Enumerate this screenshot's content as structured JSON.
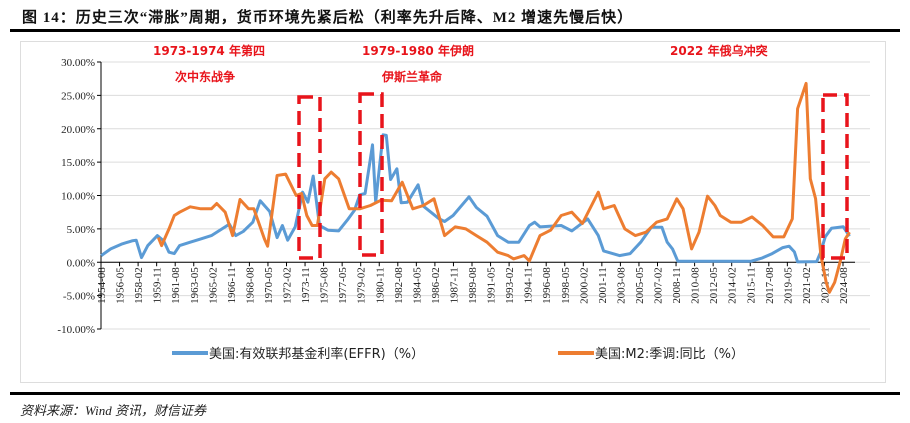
{
  "title": "图 14：历史三次“滞胀”周期，货币环境先紧后松（利率先升后降、M2 增速先慢后快）",
  "source": "资料来源：Wind 资讯，财信证券",
  "annotations": [
    {
      "line1": "1973-1974 年第四",
      "line2": "次中东战争"
    },
    {
      "line1": "1979-1980 年伊朗",
      "line2": "伊斯兰革命"
    },
    {
      "line1": "2022 年俄乌冲突",
      "line2": ""
    }
  ],
  "colors": {
    "effr": "#5b9bd5",
    "m2": "#ed7d31",
    "highlight": "#e8141b"
  },
  "chart_data": {
    "type": "line",
    "ylim": [
      -10,
      30
    ],
    "yticks": [
      "-10.00%",
      "-5.00%",
      "0.00%",
      "5.00%",
      "10.00%",
      "15.00%",
      "20.00%",
      "25.00%",
      "30.00%"
    ],
    "ytick_values": [
      -10,
      -5,
      0,
      5,
      10,
      15,
      20,
      25,
      30
    ],
    "grid": true,
    "legend_position": "bottom",
    "xticks": [
      "1954-08",
      "1956-05",
      "1958-02",
      "1959-11",
      "1961-08",
      "1963-05",
      "1965-02",
      "1966-11",
      "1968-08",
      "1970-05",
      "1972-02",
      "1973-11",
      "1975-08",
      "1977-05",
      "1979-02",
      "1980-11",
      "1982-08",
      "1984-05",
      "1986-02",
      "1987-11",
      "1989-08",
      "1991-05",
      "1993-02",
      "1994-11",
      "1996-08",
      "1998-05",
      "2000-02",
      "2001-11",
      "2003-08",
      "2005-05",
      "2007-02",
      "2008-11",
      "2010-08",
      "2012-05",
      "2014-02",
      "2015-11",
      "2017-08",
      "2019-05",
      "2021-02",
      "2022-11",
      "2024-08"
    ],
    "highlight_periods": [
      "1973-1974",
      "1979-1980",
      "2022-2024"
    ],
    "series": [
      {
        "name": "美国:有效联邦基金利率(EFFR)（%）",
        "key": "effr",
        "x": [
          1954.6,
          1955.5,
          1956.5,
          1957.5,
          1957.9,
          1958.4,
          1959.0,
          1959.9,
          1960.5,
          1961.0,
          1961.5,
          1962.0,
          1963.0,
          1964.0,
          1965.0,
          1966.0,
          1966.7,
          1967.3,
          1968.0,
          1968.9,
          1969.6,
          1970.5,
          1971.2,
          1971.7,
          1972.2,
          1972.9,
          1973.6,
          1974.1,
          1974.6,
          1975.2,
          1976.0,
          1977.0,
          1977.9,
          1978.5,
          1979.0,
          1979.5,
          1980.2,
          1980.5,
          1980.9,
          1981.2,
          1981.5,
          1981.9,
          1982.5,
          1982.9,
          1983.5,
          1984.5,
          1985.0,
          1986.5,
          1987.0,
          1987.8,
          1989.3,
          1990.0,
          1991.0,
          1992.0,
          1993.0,
          1994.0,
          1995.0,
          1995.5,
          1996.0,
          1998.0,
          1999.0,
          2000.5,
          2001.5,
          2002.0,
          2003.5,
          2004.5,
          2005.5,
          2006.5,
          2007.5,
          2008.0,
          2008.5,
          2009.0,
          2015.9,
          2016.9,
          2017.9,
          2018.9,
          2019.5,
          2020.0,
          2020.3,
          2022.1,
          2022.5,
          2022.9,
          2023.5,
          2024.6,
          2024.9,
          2025.2
        ],
        "values": [
          1.0,
          2.0,
          2.7,
          3.2,
          3.3,
          0.7,
          2.5,
          4.0,
          3.2,
          1.5,
          1.3,
          2.5,
          3.0,
          3.5,
          4.0,
          5.0,
          5.7,
          4.0,
          4.6,
          6.0,
          9.2,
          7.6,
          3.7,
          5.5,
          3.3,
          5.3,
          10.5,
          9.0,
          12.9,
          5.5,
          4.8,
          4.7,
          6.5,
          7.8,
          10.1,
          10.3,
          17.6,
          9.0,
          15.0,
          19.1,
          19.0,
          12.4,
          14.0,
          8.9,
          9.0,
          11.6,
          8.4,
          6.5,
          6.1,
          7.0,
          9.8,
          8.2,
          6.9,
          4.0,
          3.0,
          3.0,
          5.5,
          6.0,
          5.3,
          5.5,
          4.7,
          6.5,
          4.0,
          1.7,
          1.0,
          1.3,
          3.0,
          5.25,
          5.25,
          3.0,
          2.0,
          0.15,
          0.15,
          0.6,
          1.3,
          2.2,
          2.4,
          1.55,
          0.05,
          0.1,
          1.6,
          3.8,
          5.1,
          5.33,
          4.6,
          3.9
        ]
      },
      {
        "name": "美国:M2:季调:同比（%）",
        "key": "m2",
        "x": [
          1960.0,
          1960.3,
          1961.0,
          1961.5,
          1962.0,
          1963.0,
          1964.0,
          1965.0,
          1965.5,
          1966.3,
          1967.0,
          1967.7,
          1968.5,
          1969.0,
          1970.0,
          1970.3,
          1971.2,
          1972.0,
          1973.0,
          1973.5,
          1974.0,
          1974.5,
          1975.0,
          1975.7,
          1976.3,
          1977.0,
          1978.0,
          1979.0,
          1980.0,
          1981.0,
          1982.0,
          1983.0,
          1984.0,
          1985.0,
          1986.0,
          1987.0,
          1988.0,
          1989.0,
          1990.0,
          1991.0,
          1992.0,
          1993.0,
          1993.5,
          1994.5,
          1995.0,
          1996.0,
          1997.0,
          1998.0,
          1999.0,
          2000.0,
          2001.5,
          2002.0,
          2003.0,
          2004.0,
          2005.0,
          2006.0,
          2007.0,
          2008.0,
          2008.9,
          2009.5,
          2010.3,
          2011.0,
          2011.8,
          2012.5,
          2013.0,
          2014.0,
          2015.0,
          2016.0,
          2017.0,
          2018.0,
          2019.0,
          2019.8,
          2020.3,
          2021.1,
          2021.5,
          2022.0,
          2022.5,
          2023.0,
          2023.3,
          2023.8,
          2024.3,
          2024.8,
          2025.2
        ],
        "values": [
          3.7,
          2.5,
          5.0,
          7.0,
          7.5,
          8.3,
          8.0,
          8.0,
          8.8,
          7.5,
          4.0,
          9.4,
          8.0,
          8.0,
          3.5,
          2.4,
          13.0,
          13.2,
          10.0,
          10.3,
          7.0,
          5.5,
          5.5,
          12.5,
          13.5,
          12.5,
          8.0,
          8.0,
          8.5,
          9.3,
          9.2,
          12.0,
          8.0,
          8.5,
          9.5,
          4.0,
          5.3,
          5.0,
          4.0,
          3.0,
          1.5,
          1.0,
          0.5,
          1.0,
          0.2,
          4.0,
          4.8,
          7.0,
          7.5,
          5.8,
          10.5,
          8.0,
          8.5,
          5.0,
          4.0,
          4.5,
          6.0,
          6.5,
          9.5,
          8.0,
          2.0,
          4.5,
          9.9,
          8.5,
          7.0,
          6.0,
          6.0,
          6.8,
          5.5,
          3.8,
          3.8,
          6.5,
          23.0,
          26.8,
          12.5,
          9.5,
          1.0,
          -3.0,
          -4.5,
          -3.0,
          0.0,
          3.5,
          4.5
        ]
      }
    ]
  }
}
